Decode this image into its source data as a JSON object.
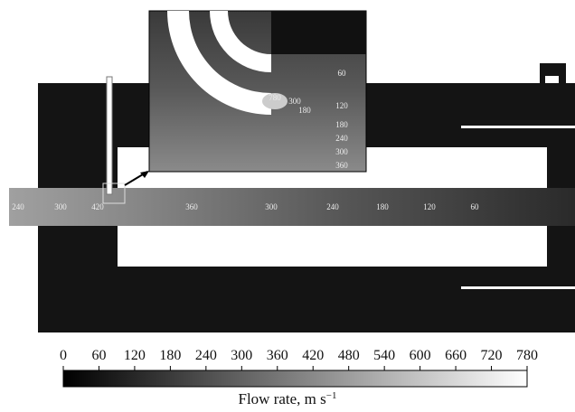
{
  "main_labels": [
    240,
    300,
    420,
    360,
    300,
    240,
    180,
    120,
    60
  ],
  "inset_labels": [
    60,
    780,
    300,
    180,
    120,
    180,
    240,
    300,
    360
  ],
  "colorbar": {
    "ticks": [
      0,
      60,
      120,
      180,
      240,
      300,
      360,
      420,
      480,
      540,
      600,
      660,
      720,
      780
    ],
    "label": "Flow rate, m s",
    "label_exponent": "−1"
  }
}
